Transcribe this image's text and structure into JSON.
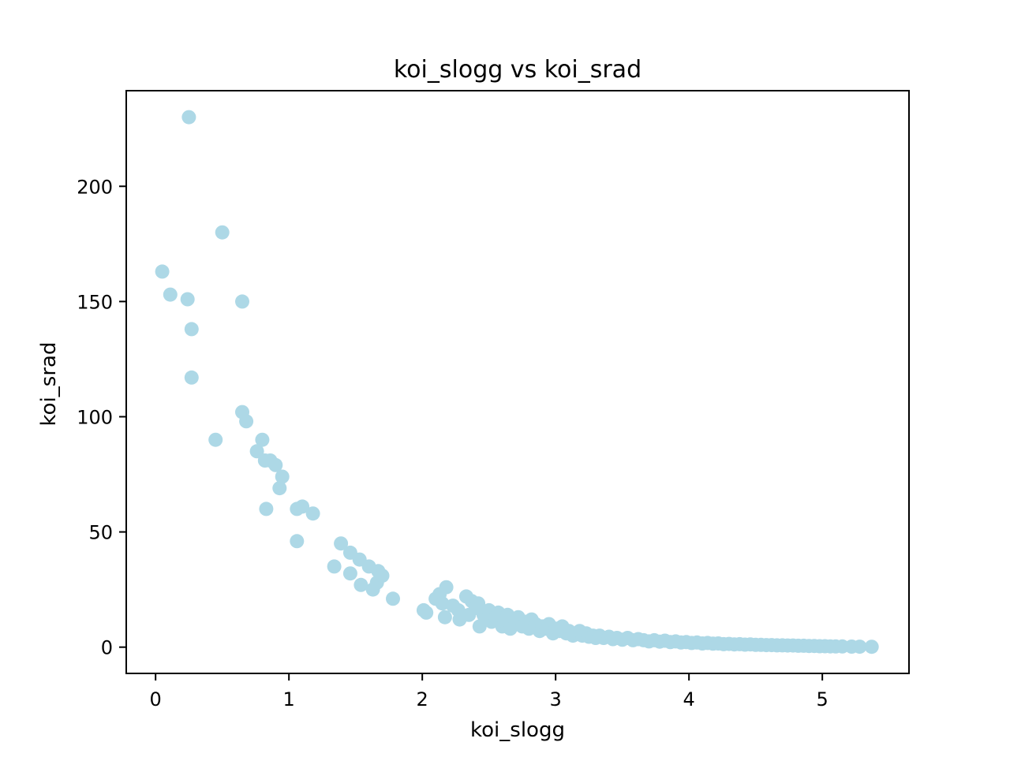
{
  "chart_data": {
    "type": "scatter",
    "title": "koi_slogg vs koi_srad",
    "xlabel": "koi_slogg",
    "ylabel": "koi_srad",
    "xlim": [
      -0.22,
      5.65
    ],
    "ylim": [
      -11.4,
      241.5
    ],
    "xticks": [
      0,
      1,
      2,
      3,
      4,
      5
    ],
    "yticks": [
      0,
      50,
      100,
      150,
      200
    ],
    "grid": false,
    "legend": "none",
    "marker_color": "#add8e6",
    "series": [
      {
        "points": [
          [
            0.25,
            230
          ],
          [
            0.05,
            163
          ],
          [
            0.11,
            153
          ],
          [
            0.24,
            151
          ],
          [
            0.27,
            138
          ],
          [
            0.27,
            117
          ],
          [
            0.5,
            180
          ],
          [
            0.65,
            150
          ],
          [
            0.65,
            102
          ],
          [
            0.68,
            98
          ],
          [
            0.45,
            90
          ],
          [
            0.76,
            85
          ],
          [
            0.8,
            90
          ],
          [
            0.82,
            81
          ],
          [
            0.86,
            81
          ],
          [
            0.9,
            79
          ],
          [
            0.95,
            74
          ],
          [
            0.93,
            69
          ],
          [
            0.83,
            60
          ],
          [
            1.06,
            60
          ],
          [
            1.1,
            61
          ],
          [
            1.18,
            58
          ],
          [
            1.06,
            46
          ],
          [
            1.34,
            35
          ],
          [
            1.39,
            45
          ],
          [
            1.46,
            41
          ],
          [
            1.46,
            32
          ],
          [
            1.53,
            38
          ],
          [
            1.54,
            27
          ],
          [
            1.6,
            35
          ],
          [
            1.63,
            25
          ],
          [
            1.66,
            28
          ],
          [
            1.67,
            33
          ],
          [
            1.7,
            31
          ],
          [
            1.78,
            21
          ],
          [
            2.01,
            16
          ],
          [
            2.03,
            15
          ],
          [
            2.1,
            21
          ],
          [
            2.13,
            23
          ],
          [
            2.15,
            19
          ],
          [
            2.18,
            26
          ],
          [
            2.17,
            13
          ],
          [
            2.23,
            18
          ],
          [
            2.27,
            16
          ],
          [
            2.28,
            12
          ],
          [
            2.33,
            22
          ],
          [
            2.35,
            14
          ],
          [
            2.37,
            20
          ],
          [
            2.4,
            17
          ],
          [
            2.42,
            19
          ],
          [
            2.43,
            9
          ],
          [
            2.46,
            14
          ],
          [
            2.48,
            12
          ],
          [
            2.5,
            16
          ],
          [
            2.52,
            11
          ],
          [
            2.55,
            13
          ],
          [
            2.57,
            15
          ],
          [
            2.6,
            9
          ],
          [
            2.62,
            11
          ],
          [
            2.64,
            14
          ],
          [
            2.66,
            8
          ],
          [
            2.68,
            12
          ],
          [
            2.7,
            10
          ],
          [
            2.72,
            13
          ],
          [
            2.75,
            9
          ],
          [
            2.78,
            11
          ],
          [
            2.8,
            8
          ],
          [
            2.82,
            12
          ],
          [
            2.85,
            10
          ],
          [
            2.88,
            7
          ],
          [
            2.9,
            9
          ],
          [
            2.93,
            8
          ],
          [
            2.95,
            10
          ],
          [
            2.98,
            6
          ],
          [
            3.0,
            8
          ],
          [
            3.03,
            7
          ],
          [
            3.05,
            9
          ],
          [
            3.08,
            6
          ],
          [
            3.1,
            7
          ],
          [
            3.13,
            5
          ],
          [
            3.15,
            6
          ],
          [
            3.18,
            7
          ],
          [
            3.2,
            5
          ],
          [
            3.23,
            6
          ],
          [
            3.25,
            4.5
          ],
          [
            3.28,
            5
          ],
          [
            3.3,
            4
          ],
          [
            3.33,
            5
          ],
          [
            3.36,
            4
          ],
          [
            3.4,
            4.5
          ],
          [
            3.43,
            3.5
          ],
          [
            3.46,
            4
          ],
          [
            3.5,
            3.2
          ],
          [
            3.54,
            4
          ],
          [
            3.58,
            3
          ],
          [
            3.62,
            3.5
          ],
          [
            3.66,
            3
          ],
          [
            3.7,
            2.5
          ],
          [
            3.74,
            3
          ],
          [
            3.78,
            2.4
          ],
          [
            3.82,
            2.8
          ],
          [
            3.86,
            2.2
          ],
          [
            3.9,
            2.5
          ],
          [
            3.94,
            2
          ],
          [
            3.98,
            2.2
          ],
          [
            4.02,
            1.8
          ],
          [
            4.06,
            2
          ],
          [
            4.1,
            1.6
          ],
          [
            4.14,
            1.8
          ],
          [
            4.18,
            1.5
          ],
          [
            4.22,
            1.6
          ],
          [
            4.26,
            1.3
          ],
          [
            4.3,
            1.4
          ],
          [
            4.34,
            1.2
          ],
          [
            4.38,
            1.3
          ],
          [
            4.42,
            1.1
          ],
          [
            4.46,
            1.2
          ],
          [
            4.5,
            1.0
          ],
          [
            4.54,
            1.0
          ],
          [
            4.58,
            0.9
          ],
          [
            4.62,
            0.9
          ],
          [
            4.66,
            0.8
          ],
          [
            4.7,
            0.8
          ],
          [
            4.74,
            0.7
          ],
          [
            4.78,
            0.7
          ],
          [
            4.82,
            0.6
          ],
          [
            4.86,
            0.6
          ],
          [
            4.9,
            0.5
          ],
          [
            4.94,
            0.5
          ],
          [
            4.98,
            0.4
          ],
          [
            5.02,
            0.4
          ],
          [
            5.06,
            0.35
          ],
          [
            5.1,
            0.3
          ],
          [
            5.15,
            0.3
          ],
          [
            5.22,
            0.25
          ],
          [
            5.28,
            0.2
          ],
          [
            5.37,
            0.15
          ]
        ]
      }
    ]
  }
}
